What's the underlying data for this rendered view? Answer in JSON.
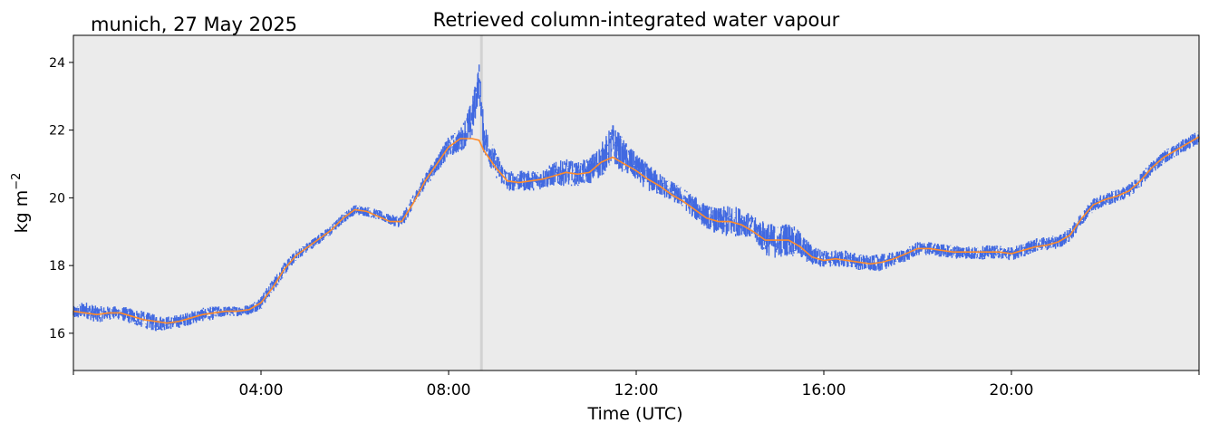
{
  "chart_data": {
    "type": "line",
    "title": "Retrieved column-integrated water vapour",
    "subtitle": "munich, 27 May 2025",
    "xlabel": "Time (UTC)",
    "ylabel": "kg m",
    "ylabel_superscript": "−2",
    "x_tick_labels": [
      "04:00",
      "08:00",
      "12:00",
      "16:00",
      "20:00"
    ],
    "x_ticks_hours": [
      0,
      4,
      8,
      12,
      16,
      20,
      24
    ],
    "y_tick_labels": [
      "16",
      "18",
      "20",
      "22",
      "24"
    ],
    "y_ticks": [
      16,
      18,
      20,
      22,
      24
    ],
    "xlim_hours": [
      0,
      24
    ],
    "ylim": [
      14.9,
      24.8
    ],
    "grid": false,
    "background_color": "#ebebeb",
    "vertical_marker_hour": 8.7,
    "series": [
      {
        "style": "raw-scatter",
        "color": "#4169e1",
        "x": [
          0.0,
          0.25,
          0.5,
          0.75,
          1.0,
          1.25,
          1.5,
          1.75,
          2.0,
          2.25,
          2.5,
          2.75,
          3.0,
          3.25,
          3.5,
          3.75,
          4.0,
          4.25,
          4.5,
          4.75,
          5.0,
          5.25,
          5.5,
          5.75,
          6.0,
          6.25,
          6.5,
          6.75,
          7.0,
          7.25,
          7.5,
          7.75,
          8.0,
          8.25,
          8.5,
          8.65,
          8.75,
          9.0,
          9.25,
          9.5,
          9.75,
          10.0,
          10.25,
          10.5,
          10.75,
          11.0,
          11.25,
          11.5,
          11.75,
          12.0,
          12.25,
          12.5,
          12.75,
          13.0,
          13.25,
          13.5,
          13.75,
          14.0,
          14.25,
          14.5,
          14.75,
          15.0,
          15.25,
          15.5,
          15.75,
          16.0,
          16.25,
          16.5,
          16.75,
          17.0,
          17.25,
          17.5,
          17.75,
          18.0,
          18.25,
          18.5,
          18.75,
          19.0,
          19.25,
          19.5,
          19.75,
          20.0,
          20.25,
          20.5,
          20.75,
          21.0,
          21.25,
          21.5,
          21.75,
          22.0,
          22.25,
          22.5,
          22.75,
          23.0,
          23.25,
          23.5,
          23.75,
          24.0
        ],
        "values": [
          16.6,
          16.7,
          16.55,
          16.6,
          16.6,
          16.5,
          16.4,
          16.3,
          16.3,
          16.35,
          16.45,
          16.55,
          16.6,
          16.65,
          16.65,
          16.7,
          16.9,
          17.4,
          17.9,
          18.3,
          18.55,
          18.8,
          19.05,
          19.4,
          19.65,
          19.6,
          19.5,
          19.35,
          19.3,
          19.9,
          20.5,
          21.0,
          21.5,
          21.7,
          22.3,
          23.5,
          21.8,
          21.0,
          20.5,
          20.5,
          20.5,
          20.55,
          20.7,
          20.75,
          20.7,
          20.8,
          21.1,
          21.6,
          21.2,
          20.9,
          20.6,
          20.4,
          20.2,
          20.0,
          19.7,
          19.45,
          19.3,
          19.3,
          19.3,
          19.1,
          18.8,
          18.7,
          18.8,
          18.6,
          18.3,
          18.2,
          18.2,
          18.2,
          18.1,
          18.05,
          18.1,
          18.2,
          18.3,
          18.5,
          18.5,
          18.45,
          18.4,
          18.4,
          18.35,
          18.4,
          18.4,
          18.35,
          18.45,
          18.6,
          18.65,
          18.7,
          18.9,
          19.4,
          19.8,
          19.95,
          20.05,
          20.2,
          20.5,
          20.9,
          21.2,
          21.4,
          21.6,
          21.8
        ],
        "noise": [
          0.2,
          0.25,
          0.25,
          0.2,
          0.2,
          0.25,
          0.25,
          0.25,
          0.2,
          0.2,
          0.2,
          0.2,
          0.2,
          0.15,
          0.15,
          0.15,
          0.2,
          0.2,
          0.2,
          0.15,
          0.15,
          0.15,
          0.15,
          0.15,
          0.15,
          0.15,
          0.15,
          0.15,
          0.2,
          0.2,
          0.2,
          0.25,
          0.3,
          0.35,
          0.6,
          0.5,
          0.5,
          0.4,
          0.3,
          0.3,
          0.3,
          0.3,
          0.35,
          0.4,
          0.35,
          0.4,
          0.5,
          0.6,
          0.5,
          0.4,
          0.4,
          0.35,
          0.3,
          0.3,
          0.35,
          0.35,
          0.4,
          0.5,
          0.4,
          0.35,
          0.5,
          0.5,
          0.5,
          0.4,
          0.3,
          0.25,
          0.25,
          0.25,
          0.25,
          0.25,
          0.25,
          0.2,
          0.2,
          0.2,
          0.2,
          0.2,
          0.2,
          0.2,
          0.2,
          0.2,
          0.2,
          0.2,
          0.2,
          0.2,
          0.2,
          0.2,
          0.2,
          0.2,
          0.2,
          0.2,
          0.2,
          0.2,
          0.2,
          0.2,
          0.2,
          0.2,
          0.2,
          0.2
        ]
      },
      {
        "style": "smoothed-line",
        "color": "#ff8c2a",
        "x": [
          0.0,
          0.25,
          0.5,
          0.75,
          1.0,
          1.25,
          1.5,
          1.75,
          2.0,
          2.25,
          2.5,
          2.75,
          3.0,
          3.25,
          3.5,
          3.75,
          4.0,
          4.25,
          4.5,
          4.75,
          5.0,
          5.25,
          5.5,
          5.75,
          6.0,
          6.25,
          6.5,
          6.75,
          7.0,
          7.25,
          7.5,
          7.75,
          8.0,
          8.25,
          8.5,
          8.65,
          8.75,
          9.0,
          9.25,
          9.5,
          9.75,
          10.0,
          10.25,
          10.5,
          10.75,
          11.0,
          11.25,
          11.5,
          11.75,
          12.0,
          12.25,
          12.5,
          12.75,
          13.0,
          13.25,
          13.5,
          13.75,
          14.0,
          14.25,
          14.5,
          14.75,
          15.0,
          15.25,
          15.5,
          15.75,
          16.0,
          16.25,
          16.5,
          16.75,
          17.0,
          17.25,
          17.5,
          17.75,
          18.0,
          18.25,
          18.5,
          18.75,
          19.0,
          19.25,
          19.5,
          19.75,
          20.0,
          20.25,
          20.5,
          20.75,
          21.0,
          21.25,
          21.5,
          21.75,
          22.0,
          22.25,
          22.5,
          22.75,
          23.0,
          23.25,
          23.5,
          23.75,
          24.0
        ],
        "values": [
          16.65,
          16.6,
          16.55,
          16.6,
          16.6,
          16.5,
          16.4,
          16.35,
          16.3,
          16.35,
          16.45,
          16.55,
          16.6,
          16.65,
          16.65,
          16.7,
          16.9,
          17.35,
          17.9,
          18.3,
          18.55,
          18.8,
          19.05,
          19.4,
          19.65,
          19.6,
          19.45,
          19.3,
          19.3,
          19.85,
          20.5,
          21.0,
          21.5,
          21.75,
          21.75,
          21.7,
          21.4,
          20.9,
          20.5,
          20.45,
          20.5,
          20.55,
          20.65,
          20.75,
          20.7,
          20.75,
          21.05,
          21.2,
          21.0,
          20.8,
          20.55,
          20.35,
          20.1,
          19.9,
          19.65,
          19.4,
          19.3,
          19.3,
          19.2,
          19.0,
          18.75,
          18.75,
          18.75,
          18.55,
          18.25,
          18.15,
          18.2,
          18.15,
          18.1,
          18.05,
          18.1,
          18.2,
          18.35,
          18.5,
          18.5,
          18.45,
          18.4,
          18.4,
          18.4,
          18.4,
          18.4,
          18.35,
          18.45,
          18.55,
          18.6,
          18.7,
          18.9,
          19.4,
          19.8,
          19.95,
          20.05,
          20.2,
          20.5,
          20.9,
          21.2,
          21.4,
          21.6,
          21.8
        ]
      }
    ]
  }
}
